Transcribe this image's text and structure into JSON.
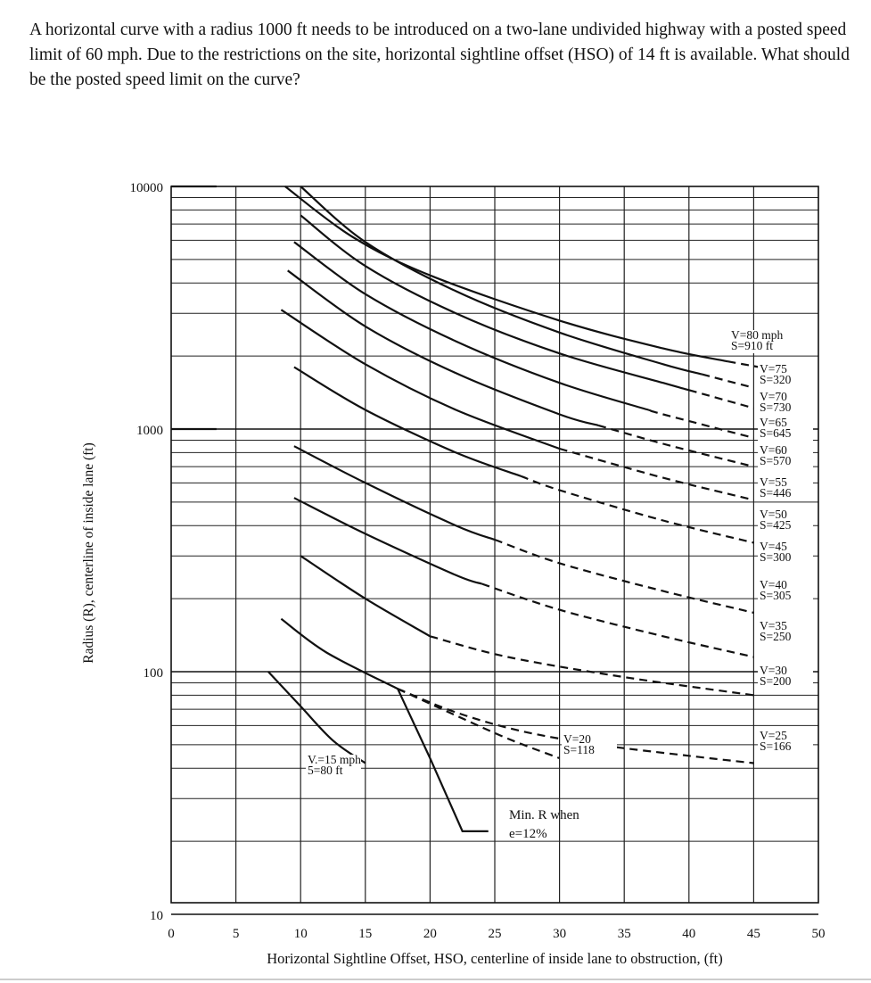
{
  "question": "A horizontal curve with a radius 1000 ft needs to be introduced on a two-lane undivided highway with a posted speed limit of 60 mph. Due to the restrictions on the site, horizontal sightline offset (HSO) of 14 ft is available. What should be the posted speed limit on the curve?",
  "chart_data": {
    "type": "line",
    "title": "",
    "xlabel": "Horizontal Sightline Offset, HSO, centerline of inside lane to obstruction, (ft)",
    "ylabel": "Radius (R), centerline of inside lane (ft)",
    "xlim": [
      0,
      50
    ],
    "ylim": [
      5,
      10000
    ],
    "y_scale": "log",
    "x_ticks": [
      "0",
      "5",
      "10",
      "15",
      "20",
      "25",
      "30",
      "35",
      "40",
      "45",
      "50"
    ],
    "y_ticks": [
      {
        "value": 10000,
        "label": "10000"
      },
      {
        "value": 1000,
        "label": "1000"
      },
      {
        "value": 100,
        "label": "100"
      },
      {
        "value": 10,
        "label": "10"
      }
    ],
    "grid": true,
    "series": [
      {
        "name": "V=80 mph S=910 ft",
        "label_lines": [
          "V=80 mph",
          "S=910 ft"
        ],
        "points": [
          [
            8.8,
            10000
          ],
          [
            14,
            6200
          ],
          [
            20,
            4300
          ],
          [
            30,
            2800
          ],
          [
            38,
            2150
          ],
          [
            43,
            1900
          ],
          [
            48,
            1700
          ]
        ],
        "dashed_from": 43
      },
      {
        "name": "V=75 S=320",
        "label_lines": [
          "V=75",
          "S=320"
        ],
        "points": [
          [
            10,
            10000
          ],
          [
            15,
            5900
          ],
          [
            22,
            3700
          ],
          [
            30,
            2500
          ],
          [
            38,
            1850
          ],
          [
            45,
            1480
          ]
        ],
        "dashed_from": 41
      },
      {
        "name": "V=70 S=730",
        "label_lines": [
          "V=70",
          "S=730"
        ],
        "points": [
          [
            10,
            7600
          ],
          [
            15,
            4700
          ],
          [
            22,
            3000
          ],
          [
            30,
            2050
          ],
          [
            38,
            1550
          ],
          [
            45,
            1220
          ]
        ],
        "dashed_from": 40
      },
      {
        "name": "V=65 S=645",
        "label_lines": [
          "V=65",
          "S=645"
        ],
        "points": [
          [
            9.5,
            5900
          ],
          [
            15,
            3600
          ],
          [
            22,
            2300
          ],
          [
            30,
            1550
          ],
          [
            38,
            1150
          ],
          [
            45,
            920
          ]
        ],
        "dashed_from": 37
      },
      {
        "name": "V=60 S=570",
        "label_lines": [
          "V=60",
          "S=570"
        ],
        "points": [
          [
            9,
            4500
          ],
          [
            15,
            2650
          ],
          [
            22,
            1700
          ],
          [
            30,
            1150
          ],
          [
            38,
            870
          ],
          [
            45,
            700
          ]
        ],
        "dashed_from": 33
      },
      {
        "name": "V=55 S=446",
        "label_lines": [
          "V=55",
          "S=446"
        ],
        "points": [
          [
            8.5,
            3100
          ],
          [
            15,
            1850
          ],
          [
            22,
            1200
          ],
          [
            30,
            830
          ],
          [
            38,
            630
          ],
          [
            45,
            510
          ]
        ],
        "dashed_from": 30
      },
      {
        "name": "V=50 S=425",
        "label_lines": [
          "V=50",
          "S=425"
        ],
        "points": [
          [
            9.5,
            1800
          ],
          [
            15,
            1200
          ],
          [
            22,
            800
          ],
          [
            30,
            560
          ],
          [
            38,
            420
          ],
          [
            45,
            340
          ]
        ],
        "dashed_from": 27
      },
      {
        "name": "V=45 S=300",
        "label_lines": [
          "V=45",
          "S=300"
        ],
        "points": [
          [
            9.5,
            850
          ],
          [
            15,
            600
          ],
          [
            22,
            400
          ],
          [
            30,
            280
          ],
          [
            38,
            215
          ],
          [
            45,
            175
          ]
        ],
        "dashed_from": 25
      },
      {
        "name": "V=40 S=305",
        "label_lines": [
          "V=40",
          "S=305"
        ],
        "points": [
          [
            9.5,
            520
          ],
          [
            15,
            370
          ],
          [
            22,
            250
          ],
          [
            30,
            180
          ],
          [
            38,
            140
          ],
          [
            45,
            115
          ]
        ],
        "dashed_from": 24
      },
      {
        "name": "V=35 S=250",
        "label_lines": [
          "V=35",
          "S=250"
        ],
        "points": [
          [
            10,
            300
          ],
          [
            15,
            200
          ],
          [
            20,
            140
          ],
          [
            26,
            115
          ],
          [
            35,
            95
          ],
          [
            45,
            80
          ]
        ],
        "dashed_from": 20
      },
      {
        "name": "V=30 S=200",
        "label_lines": [
          "V=30",
          "S=200"
        ],
        "points": [
          [
            8.5,
            165
          ],
          [
            12,
            120
          ],
          [
            17.5,
            85
          ],
          [
            22,
            68
          ],
          [
            27,
            57
          ],
          [
            33,
            50
          ],
          [
            40,
            45
          ],
          [
            45,
            42
          ]
        ],
        "dashed_from": 17.5
      },
      {
        "name": "V=25 S=166",
        "label_lines": [
          "V=25",
          "S=166"
        ],
        "points": [
          [
            8.5,
            165
          ],
          [
            12,
            120
          ],
          [
            17.5,
            85
          ],
          [
            22,
            68
          ],
          [
            27,
            57
          ],
          [
            33,
            50
          ],
          [
            40,
            45
          ],
          [
            45,
            42
          ]
        ],
        "dashed_from": 17.5
      },
      {
        "name": "V=20 S=118",
        "label_lines": [
          "V=20",
          "S=118"
        ],
        "points": [
          [
            17.5,
            85
          ],
          [
            22,
            66
          ],
          [
            26,
            53
          ],
          [
            30,
            44
          ]
        ],
        "dashed_from": 17.5
      },
      {
        "name": "V.=15 mph 5=80 ft",
        "label_lines": [
          "V.=15 mph",
          "5=80 ft"
        ],
        "points": [
          [
            7.5,
            100
          ],
          [
            10,
            72
          ],
          [
            12.5,
            52
          ],
          [
            15,
            42
          ]
        ],
        "dashed_from": null
      }
    ],
    "min_radius_line": {
      "name": "Min. R when e=12%",
      "label_lines": [
        "Min. R when",
        "e=12%"
      ],
      "points": [
        [
          17.5,
          85
        ],
        [
          20,
          44
        ],
        [
          22.5,
          22
        ],
        [
          24.5,
          22
        ]
      ]
    }
  }
}
